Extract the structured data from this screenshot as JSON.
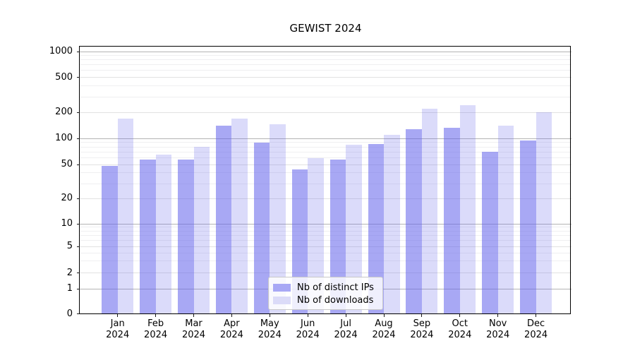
{
  "title": "GEWIST 2024",
  "legend": {
    "items": [
      {
        "label": "Nb of distinct IPs",
        "series": "ip"
      },
      {
        "label": "Nb of downloads",
        "series": "dl"
      }
    ]
  },
  "colors": {
    "ip_bar": "rgba(100,100,235,0.56)",
    "dl_bar": "rgba(100,100,235,0.23)",
    "ip_bar_flat": "#a8a8f5",
    "dl_bar_flat": "#dbdbf8",
    "grid_major": "#b4b4b4",
    "grid_mid": "#e2e2e2",
    "grid_minor": "#efeff1",
    "axis": "#000000"
  },
  "x_axis": {
    "months": [
      "Jan",
      "Feb",
      "Mar",
      "Apr",
      "May",
      "Jun",
      "Jul",
      "Aug",
      "Sep",
      "Oct",
      "Nov",
      "Dec"
    ],
    "year": "2024"
  },
  "y_axis": {
    "tick_labels": [
      "0",
      "1",
      "2",
      "5",
      "10",
      "20",
      "50",
      "100",
      "200",
      "500",
      "1000"
    ]
  },
  "chart_data": {
    "type": "bar",
    "title": "GEWIST 2024",
    "categories": [
      "Jan 2024",
      "Feb 2024",
      "Mar 2024",
      "Apr 2024",
      "May 2024",
      "Jun 2024",
      "Jul 2024",
      "Aug 2024",
      "Sep 2024",
      "Oct 2024",
      "Nov 2024",
      "Dec 2024"
    ],
    "series": [
      {
        "name": "Nb of distinct IPs",
        "values": [
          48,
          57,
          57,
          140,
          90,
          44,
          57,
          86,
          128,
          132,
          70,
          95
        ]
      },
      {
        "name": "Nb of downloads",
        "values": [
          170,
          65,
          80,
          170,
          145,
          60,
          85,
          110,
          220,
          240,
          140,
          200
        ]
      }
    ],
    "xlabel": "",
    "ylabel": "",
    "yticks": [
      0,
      1,
      2,
      5,
      10,
      20,
      50,
      100,
      200,
      500,
      1000
    ],
    "yscale": "log-like (symlog, 0 shown at axis bottom)",
    "ylim": [
      0,
      1150
    ],
    "grid": true,
    "legend_position": "lower center inside plot"
  }
}
